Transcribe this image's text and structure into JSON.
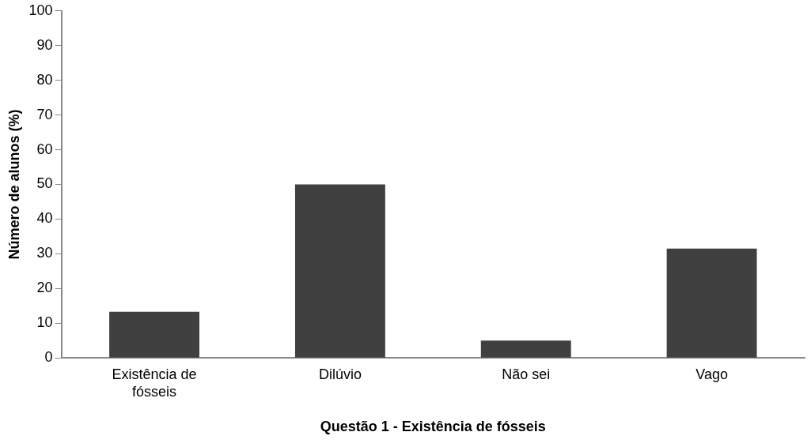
{
  "chart_data": {
    "type": "bar",
    "xlabel": "Questão 1 - Existência de fósseis",
    "ylabel": "Número de alunos (%)",
    "categories": [
      "Existência de fósseis",
      "Dilúvio",
      "Não sei",
      "Vago"
    ],
    "values": [
      13.3,
      50,
      5,
      31.5
    ],
    "color": "#404040",
    "ylim": [
      0,
      100
    ],
    "yticks": [
      0,
      10,
      20,
      30,
      40,
      50,
      60,
      70,
      80,
      90,
      100
    ],
    "grid": false,
    "legend": false
  }
}
